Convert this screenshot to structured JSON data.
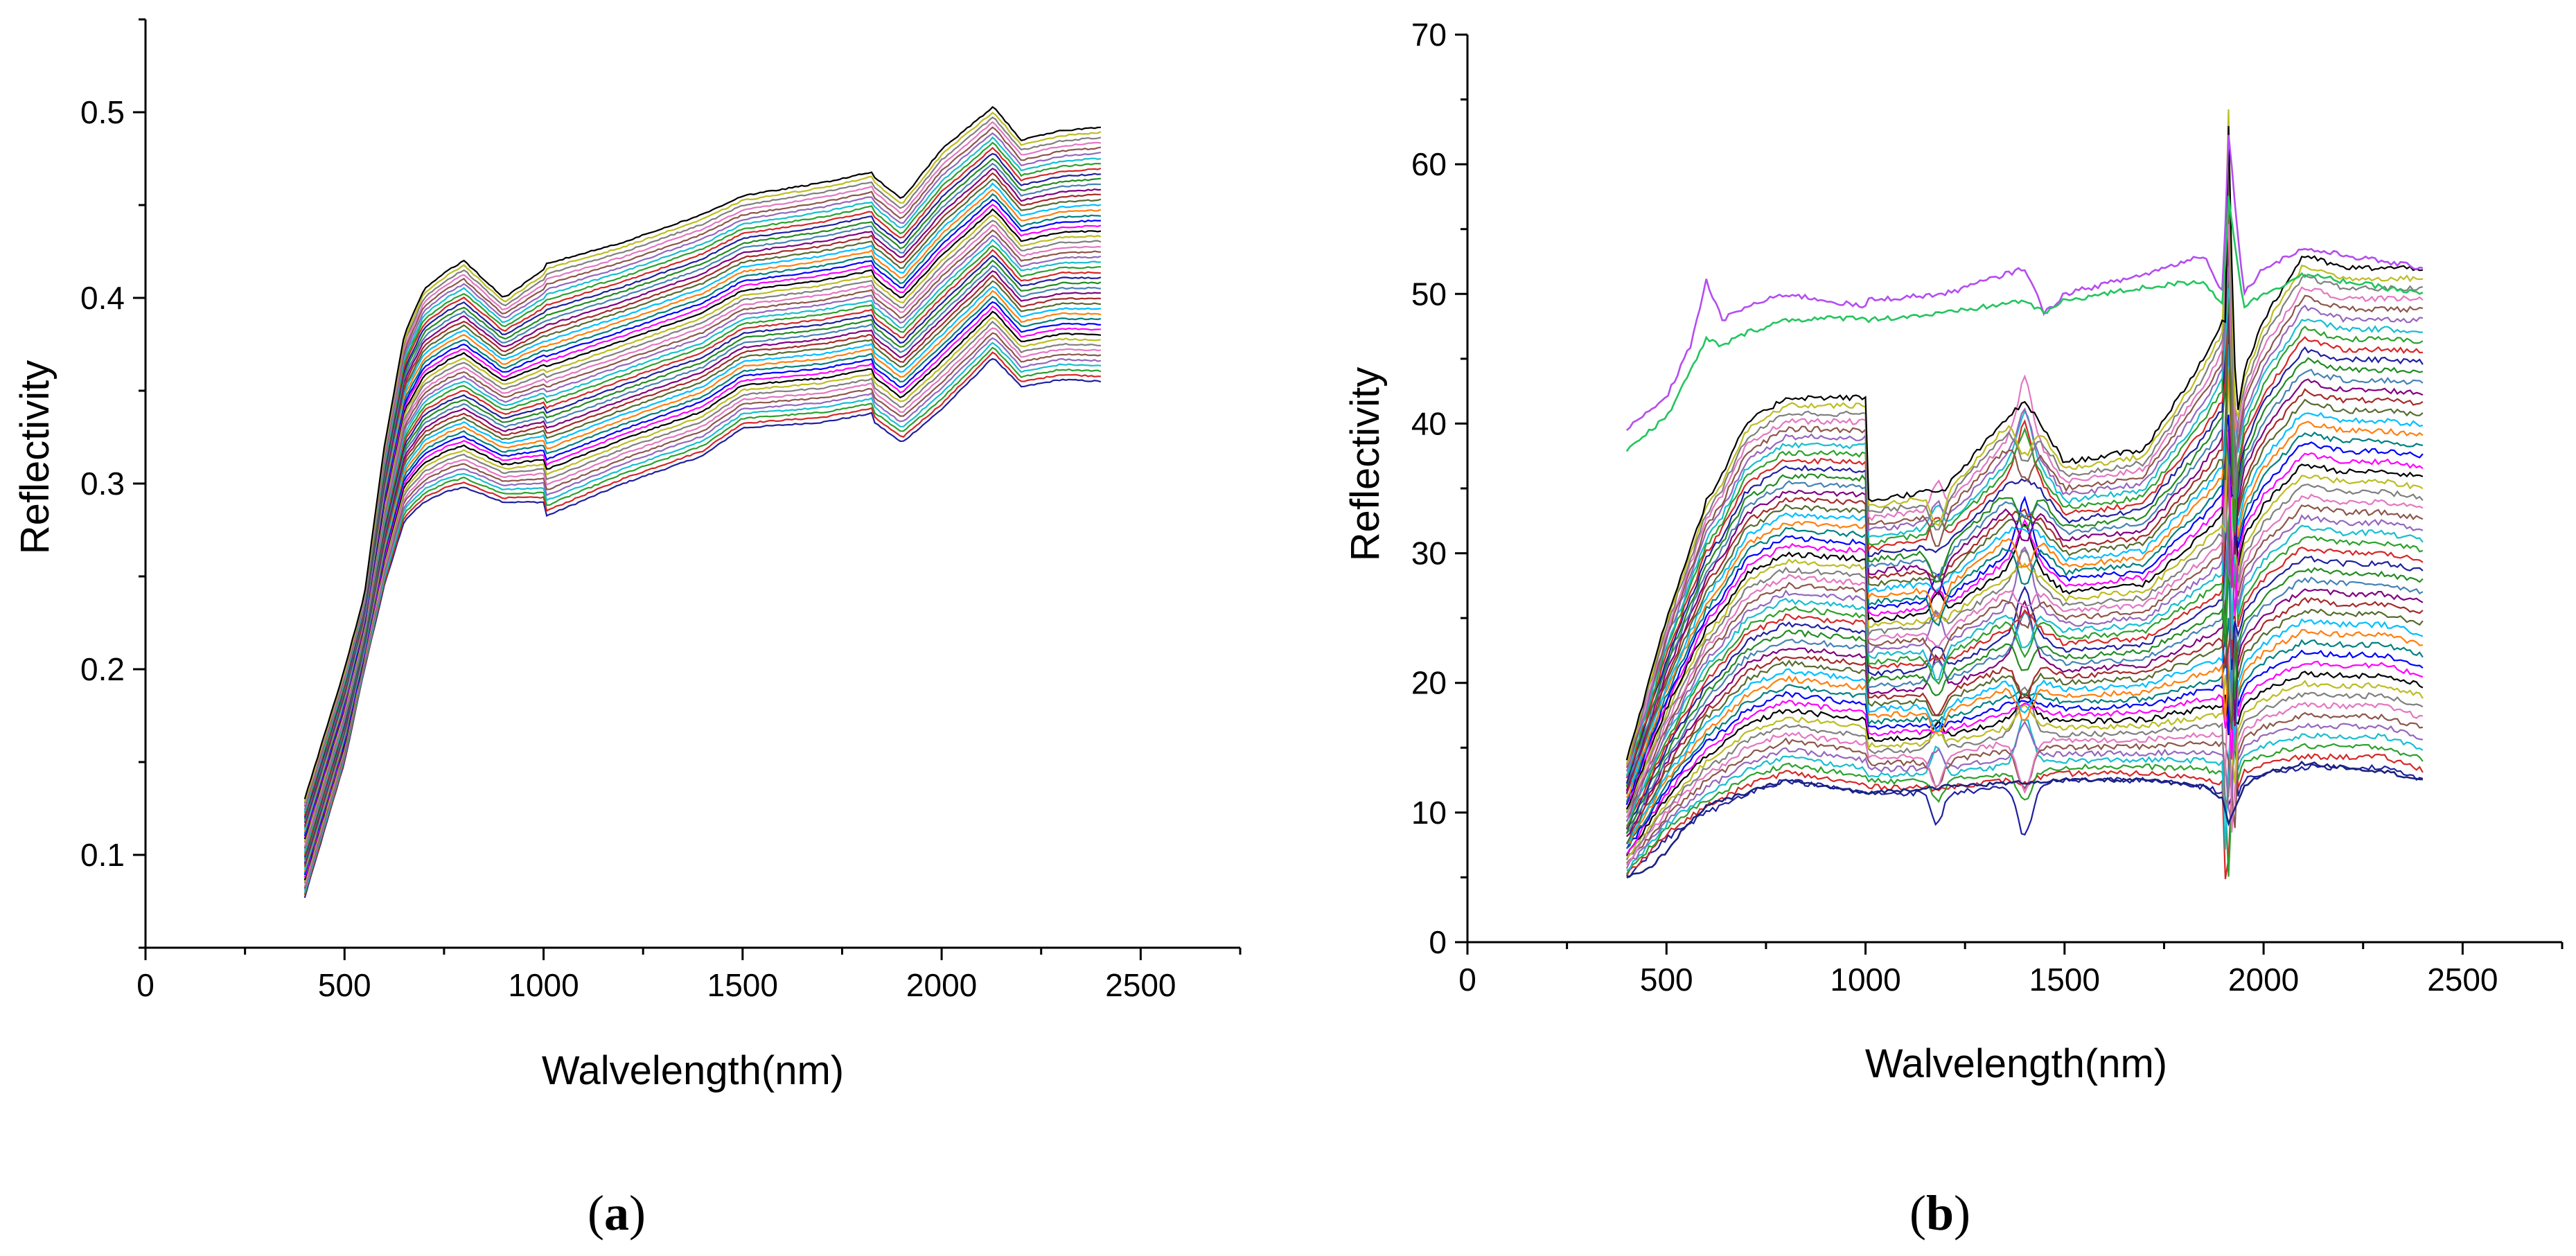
{
  "figure": {
    "panel_a_label": {
      "open": "(",
      "letter": "a",
      "close": ")"
    },
    "panel_b_label": {
      "open": "(",
      "letter": "b",
      "close": ")"
    }
  },
  "chart_data": [
    {
      "type": "line",
      "panel": "a",
      "xlabel": "Walvelength(nm)",
      "ylabel": "Reflectivity",
      "xlim": [
        0,
        2750
      ],
      "ylim": [
        0.05,
        0.55
      ],
      "x_ticks": [
        0,
        500,
        1000,
        1500,
        2000,
        2500
      ],
      "y_ticks": [
        0.1,
        0.2,
        0.3,
        0.4,
        0.5
      ],
      "grid": false,
      "legend": "none",
      "x_range": [
        400,
        2400
      ],
      "series_count": 50,
      "series_count_note": "spectral curves",
      "colors": [
        "#1f1fa0",
        "#d62728",
        "#2ca02c",
        "#17becf",
        "#9467bd",
        "#8c564b",
        "#e377c2",
        "#7f7f7f",
        "#bcbd22",
        "#000000",
        "#ff00ff",
        "#0000ff",
        "#008080",
        "#ff7f0e",
        "#00bfff",
        "#556b2f",
        "#a52a2a",
        "#800080",
        "#4682b4",
        "#228b22"
      ],
      "x": [
        400,
        500,
        550,
        600,
        650,
        700,
        760,
        800,
        900,
        1000,
        1001,
        1200,
        1400,
        1500,
        1700,
        1830,
        1831,
        1900,
        2000,
        2130,
        2200,
        2300,
        2400
      ],
      "envelope_low": [
        0.077,
        0.15,
        0.2,
        0.245,
        0.28,
        0.29,
        0.296,
        0.298,
        0.29,
        0.29,
        0.282,
        0.3,
        0.315,
        0.33,
        0.333,
        0.338,
        0.333,
        0.322,
        0.34,
        0.368,
        0.352,
        0.356,
        0.355
      ],
      "envelope_high": [
        0.13,
        0.2,
        0.24,
        0.32,
        0.38,
        0.405,
        0.415,
        0.42,
        0.4,
        0.415,
        0.418,
        0.43,
        0.445,
        0.455,
        0.462,
        0.468,
        0.465,
        0.453,
        0.48,
        0.503,
        0.485,
        0.49,
        0.492
      ]
    },
    {
      "type": "line",
      "panel": "b",
      "xlabel": "Walvelength(nm)",
      "ylabel": "Reflectivity",
      "xlim": [
        0,
        2750
      ],
      "ylim": [
        0,
        70
      ],
      "x_ticks": [
        0,
        500,
        1000,
        1500,
        2000,
        2500
      ],
      "y_ticks": [
        0,
        10,
        20,
        30,
        40,
        50,
        60,
        70
      ],
      "grid": false,
      "legend": "none",
      "x_range": [
        400,
        2400
      ],
      "series_count": 50,
      "colors": [
        "#1f1fa0",
        "#d62728",
        "#2ca02c",
        "#17becf",
        "#9467bd",
        "#8c564b",
        "#e377c2",
        "#7f7f7f",
        "#bcbd22",
        "#000000",
        "#ff00ff",
        "#0000ff",
        "#008080",
        "#ff7f0e",
        "#00bfff",
        "#556b2f",
        "#a52a2a",
        "#800080",
        "#4682b4",
        "#228b22"
      ],
      "x": [
        400,
        500,
        600,
        640,
        700,
        800,
        1000,
        1001,
        1200,
        1400,
        1500,
        1700,
        1850,
        1900,
        1910,
        1930,
        1950,
        2000,
        2100,
        2200,
        2300,
        2400
      ],
      "envelope_low": [
        5,
        8,
        10,
        10.5,
        11.5,
        12.5,
        11.5,
        11.5,
        11.5,
        12,
        12.5,
        12.5,
        12,
        11.5,
        9,
        11,
        12.5,
        13,
        13.5,
        13.5,
        13.5,
        12.5
      ],
      "envelope_high": [
        14,
        25,
        34,
        36,
        40,
        42,
        42,
        34,
        35,
        42,
        37,
        38,
        45,
        48,
        64,
        40,
        44,
        48,
        53,
        52,
        52,
        52
      ],
      "top_pair": {
        "x": [
          400,
          500,
          560,
          600,
          640,
          700,
          800,
          1000,
          1001,
          1200,
          1400,
          1450,
          1500,
          1700,
          1850,
          1900,
          1910,
          1950,
          2000,
          2100,
          2200,
          2300,
          2400
        ],
        "upper": [
          39.5,
          42,
          46,
          51,
          48,
          49,
          50,
          49,
          49.5,
          50,
          52,
          48.5,
          50,
          51.5,
          53,
          50,
          63,
          50,
          52,
          53.5,
          53,
          52.5,
          52
        ],
        "lower": [
          38,
          40.5,
          44,
          46.5,
          46,
          47,
          48,
          48.2,
          48,
          48.5,
          49.5,
          48.5,
          49.5,
          50.5,
          51,
          49,
          58,
          49,
          50,
          51.5,
          51,
          50.5,
          50
        ]
      },
      "bottom_curve": {
        "x": [
          400,
          450,
          500,
          550,
          600,
          650,
          700,
          800,
          1000,
          1200,
          1500,
          1700,
          1850,
          1900,
          1910,
          1950,
          2000,
          2100,
          2200,
          2300,
          2400
        ],
        "y": [
          5,
          5.5,
          7,
          9,
          10.5,
          11,
          11.5,
          12.5,
          11.5,
          12,
          12.5,
          12.5,
          12,
          11,
          9,
          12,
          13,
          13.8,
          13.5,
          13.2,
          12.5
        ]
      }
    }
  ]
}
